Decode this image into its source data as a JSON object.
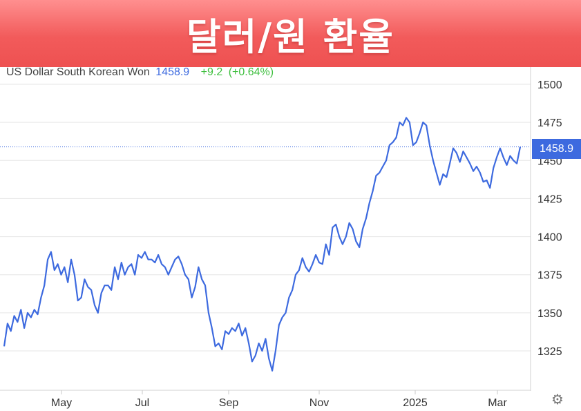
{
  "title": "달러/원 환율",
  "header": {
    "name": "US Dollar South Korean Won",
    "price": "1458.9",
    "change": "+9.2",
    "change_pct": "(+0.64%)"
  },
  "colors": {
    "line": "#3d6adf",
    "positive": "#3fbf3f",
    "banner": "#f25b5b",
    "grid": "#e6e6e6"
  },
  "settings_icon": "gear-icon",
  "chart_data": {
    "type": "line",
    "title": "",
    "xlabel": "",
    "ylabel": "",
    "ylim": [
      1300,
      1510
    ],
    "y_ticks": [
      1325,
      1350,
      1375,
      1400,
      1425,
      1450,
      1475,
      1500
    ],
    "x_ticks": [
      "May",
      "Jul",
      "Sep",
      "Nov",
      "2025",
      "Mar"
    ],
    "grid": true,
    "last_price": 1458.9,
    "last_price_label": "1458.9",
    "series": [
      {
        "values": [
          1328,
          1343,
          1338,
          1348,
          1344,
          1352,
          1340,
          1350,
          1347,
          1352,
          1349,
          1360,
          1368,
          1385,
          1390,
          1378,
          1382,
          1375,
          1380,
          1370,
          1385,
          1375,
          1358,
          1360,
          1372,
          1367,
          1365,
          1355,
          1350,
          1363,
          1368,
          1368,
          1365,
          1380,
          1372,
          1383,
          1375,
          1380,
          1382,
          1375,
          1388,
          1386,
          1390,
          1385,
          1385,
          1383,
          1388,
          1382,
          1380,
          1375,
          1380,
          1385,
          1387,
          1382,
          1375,
          1372,
          1360,
          1367,
          1380,
          1372,
          1368,
          1350,
          1340,
          1328,
          1330,
          1326,
          1338,
          1336,
          1340,
          1338,
          1343,
          1335,
          1340,
          1330,
          1318,
          1322,
          1330,
          1325,
          1333,
          1320,
          1312,
          1325,
          1342,
          1347,
          1350,
          1360,
          1365,
          1375,
          1378,
          1386,
          1380,
          1377,
          1382,
          1388,
          1383,
          1382,
          1395,
          1388,
          1406,
          1408,
          1400,
          1395,
          1400,
          1409,
          1405,
          1397,
          1393,
          1405,
          1412,
          1422,
          1430,
          1440,
          1442,
          1446,
          1450,
          1460,
          1462,
          1465,
          1475,
          1473,
          1478,
          1475,
          1460,
          1462,
          1468,
          1475,
          1473,
          1460,
          1450,
          1442,
          1434,
          1441,
          1439,
          1448,
          1458,
          1455,
          1449,
          1456,
          1452,
          1448,
          1443,
          1446,
          1442,
          1436,
          1437,
          1432,
          1445,
          1452,
          1458,
          1452,
          1447,
          1453,
          1450,
          1448,
          1458.9
        ]
      }
    ]
  }
}
